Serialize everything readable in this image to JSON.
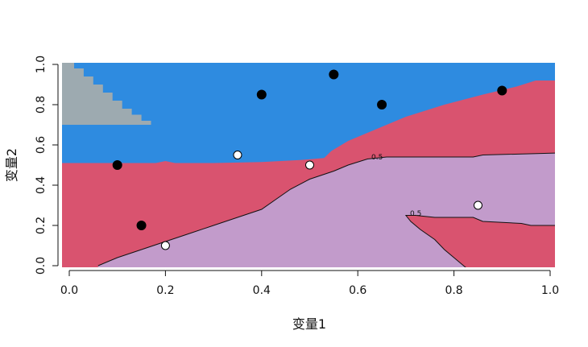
{
  "chart_data": {
    "type": "scatter",
    "title": "",
    "xlabel": "变量1",
    "ylabel": "变量2",
    "xlim": [
      -0.01,
      1.01
    ],
    "ylim": [
      -0.01,
      1.02
    ],
    "x_ticks": [
      "0.0",
      "0.2",
      "0.4",
      "0.6",
      "0.8",
      "1.0"
    ],
    "y_ticks": [
      "0.0",
      "0.2",
      "0.4",
      "0.6",
      "0.8",
      "1.0"
    ],
    "grid": false,
    "region_colors": {
      "blue": "#2e8be0",
      "crimson": "#d9536f",
      "lavender": "#c29bcb",
      "gray": "#9daab0"
    },
    "contour_label": "0.5",
    "points": [
      {
        "x": 0.1,
        "y": 0.5,
        "class": "black"
      },
      {
        "x": 0.15,
        "y": 0.2,
        "class": "black"
      },
      {
        "x": 0.4,
        "y": 0.85,
        "class": "black"
      },
      {
        "x": 0.55,
        "y": 0.95,
        "class": "black"
      },
      {
        "x": 0.65,
        "y": 0.8,
        "class": "black"
      },
      {
        "x": 0.9,
        "y": 0.87,
        "class": "black"
      },
      {
        "x": 0.2,
        "y": 0.1,
        "class": "white"
      },
      {
        "x": 0.35,
        "y": 0.55,
        "class": "white"
      },
      {
        "x": 0.5,
        "y": 0.5,
        "class": "white"
      },
      {
        "x": 0.85,
        "y": 0.3,
        "class": "white"
      }
    ]
  }
}
